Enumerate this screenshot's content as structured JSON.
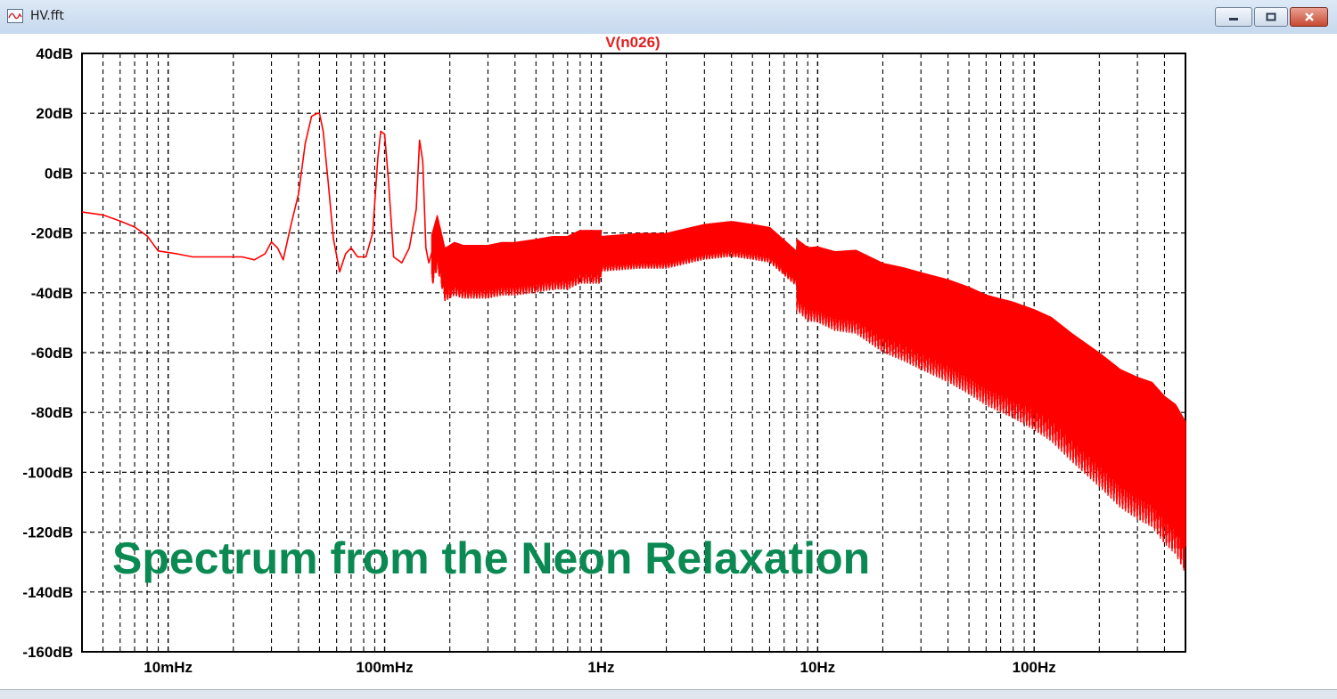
{
  "window": {
    "title": "HV.fft",
    "icon": "waveform-icon",
    "controls": {
      "minimize": "minimize-icon",
      "maximize": "maximize-icon",
      "close": "close-icon"
    }
  },
  "overlay_text": "Spectrum from the Neon Relaxation",
  "colors": {
    "trace": "#ff0000",
    "overlay": "#0a8a52",
    "grid": "#000000"
  },
  "chart_data": {
    "type": "line",
    "title": "V(n026)",
    "xscale": "log",
    "xlim": [
      0.004,
      500
    ],
    "ylim": [
      -160,
      40
    ],
    "x_ticks": [
      {
        "value": 0.01,
        "label": "10mHz"
      },
      {
        "value": 0.1,
        "label": "100mHz"
      },
      {
        "value": 1,
        "label": "1Hz"
      },
      {
        "value": 10,
        "label": "10Hz"
      },
      {
        "value": 100,
        "label": "100Hz"
      }
    ],
    "y_ticks": [
      {
        "value": 40,
        "label": "40dB"
      },
      {
        "value": 20,
        "label": "20dB"
      },
      {
        "value": 0,
        "label": "0dB"
      },
      {
        "value": -20,
        "label": "-20dB"
      },
      {
        "value": -40,
        "label": "-40dB"
      },
      {
        "value": -60,
        "label": "-60dB"
      },
      {
        "value": -80,
        "label": "-80dB"
      },
      {
        "value": -100,
        "label": "-100dB"
      },
      {
        "value": -120,
        "label": "-120dB"
      },
      {
        "value": -140,
        "label": "-140dB"
      },
      {
        "value": -160,
        "label": "-160dB"
      }
    ],
    "grid": true,
    "series": [
      {
        "x": [
          0.004,
          0.005,
          0.006,
          0.007,
          0.008,
          0.009,
          0.011,
          0.013,
          0.016,
          0.02,
          0.022,
          0.025,
          0.028,
          0.03,
          0.032,
          0.034,
          0.037,
          0.04,
          0.043,
          0.046,
          0.049,
          0.05,
          0.052,
          0.055,
          0.058,
          0.062,
          0.066,
          0.07,
          0.075,
          0.082,
          0.088,
          0.093,
          0.096,
          0.1,
          0.104,
          0.11,
          0.12,
          0.13,
          0.14,
          0.145,
          0.15,
          0.155,
          0.16,
          0.175,
          0.19,
          0.2,
          0.21,
          0.23,
          0.25,
          0.3,
          0.35,
          0.4,
          0.5,
          0.6,
          0.7,
          0.8,
          1.0,
          1.5,
          2.0,
          3.0,
          4.0,
          5.0,
          6.0,
          8.0,
          9.0,
          10.0,
          12.0,
          15.0,
          20.0,
          25.0,
          30.0,
          40.0,
          50.0,
          60.0,
          80.0,
          100.0,
          120.0,
          150.0,
          200.0,
          250.0,
          300.0,
          350.0,
          400.0,
          450.0,
          500.0
        ],
        "y": [
          -13,
          -14,
          -16,
          -18,
          -21,
          -26,
          -27,
          -28,
          -28,
          -28,
          -28,
          -29,
          -27,
          -23,
          -25,
          -29,
          -17,
          -7,
          10,
          19,
          20,
          20,
          14,
          -4,
          -22,
          -33,
          -27,
          -25,
          -28,
          -28,
          -20,
          5,
          14,
          13,
          -2,
          -28,
          -30,
          -25,
          -12,
          11,
          4,
          -25,
          -30,
          -20,
          -31,
          -30,
          -29,
          -30,
          -30,
          -30,
          -29,
          -29,
          -28,
          -27,
          -27,
          -25,
          -25,
          -24,
          -24,
          -21,
          -20,
          -21,
          -22,
          -30,
          -33,
          -33,
          -35,
          -35,
          -40,
          -42,
          -44,
          -47,
          -50,
          -53,
          -56,
          -59,
          -62,
          -68,
          -75,
          -81,
          -84,
          -86,
          -91,
          -94,
          -100
        ]
      }
    ]
  }
}
